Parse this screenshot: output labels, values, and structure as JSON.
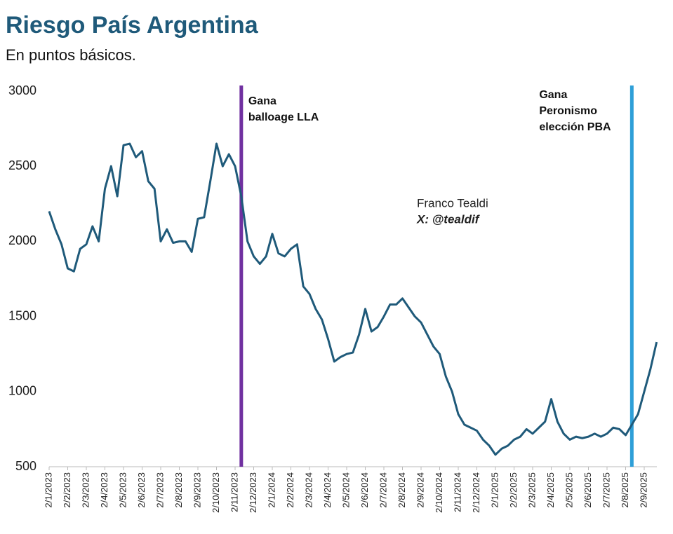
{
  "chart_data": {
    "type": "line",
    "title": "Riesgo País Argentina",
    "subtitle": "En puntos básicos.",
    "categories": [
      "2/1/2023",
      null,
      null,
      "2/2/2023",
      null,
      null,
      "2/3/2023",
      null,
      null,
      "2/4/2023",
      null,
      null,
      "2/5/2023",
      null,
      null,
      "2/6/2023",
      null,
      null,
      "2/7/2023",
      null,
      null,
      "2/8/2023",
      null,
      null,
      "2/9/2023",
      null,
      null,
      "2/10/2023",
      null,
      null,
      "2/11/2023",
      null,
      null,
      "2/12/2023",
      null,
      null,
      "2/1/2024",
      null,
      null,
      "2/2/2024",
      null,
      null,
      "2/3/2024",
      null,
      null,
      "2/4/2024",
      null,
      null,
      "2/5/2024",
      null,
      null,
      "2/6/2024",
      null,
      null,
      "2/7/2024",
      null,
      null,
      "2/8/2024",
      null,
      null,
      "2/9/2024",
      null,
      null,
      "2/10/2024",
      null,
      null,
      "2/11/2024",
      null,
      null,
      "2/12/2024",
      null,
      null,
      "2/1/2025",
      null,
      null,
      "2/2/2025",
      null,
      null,
      "2/3/2025",
      null,
      null,
      "2/4/2025",
      null,
      null,
      "2/5/2025",
      null,
      null,
      "2/6/2025",
      null,
      null,
      "2/7/2025",
      null,
      null,
      "2/8/2025",
      null,
      null,
      "2/9/2025",
      null,
      null
    ],
    "series": [
      {
        "name": "Riesgo País",
        "color": "#1f5a7a",
        "values": [
          2200,
          2080,
          1980,
          1820,
          1800,
          1950,
          1980,
          2100,
          2000,
          2350,
          2500,
          2300,
          2640,
          2650,
          2560,
          2600,
          2400,
          2350,
          2000,
          2080,
          1990,
          2000,
          2000,
          1930,
          2150,
          2160,
          2400,
          2650,
          2500,
          2580,
          2500,
          2300,
          2000,
          1900,
          1850,
          1900,
          2050,
          1920,
          1900,
          1950,
          1980,
          1700,
          1650,
          1550,
          1480,
          1350,
          1200,
          1230,
          1250,
          1260,
          1380,
          1550,
          1400,
          1430,
          1500,
          1580,
          1580,
          1620,
          1560,
          1500,
          1460,
          1380,
          1300,
          1250,
          1100,
          1000,
          850,
          780,
          760,
          740,
          680,
          640,
          580,
          620,
          640,
          680,
          700,
          750,
          720,
          760,
          800,
          950,
          800,
          720,
          680,
          700,
          690,
          700,
          720,
          700,
          720,
          760,
          750,
          710,
          780,
          850,
          1000,
          1150,
          1330
        ]
      }
    ],
    "ylim": [
      500,
      3000
    ],
    "yticks": [
      500,
      1000,
      1500,
      2000,
      2500,
      3000
    ],
    "grid": false,
    "events": [
      {
        "lines": [
          "Gana",
          "balloage LLA"
        ],
        "color": "#7030a0"
      },
      {
        "lines": [
          "Gana",
          "Peronismo",
          "elección PBA"
        ],
        "color": "#2e9fd8"
      }
    ],
    "credit": [
      "Franco Tealdi",
      "X: @tealdif"
    ]
  }
}
